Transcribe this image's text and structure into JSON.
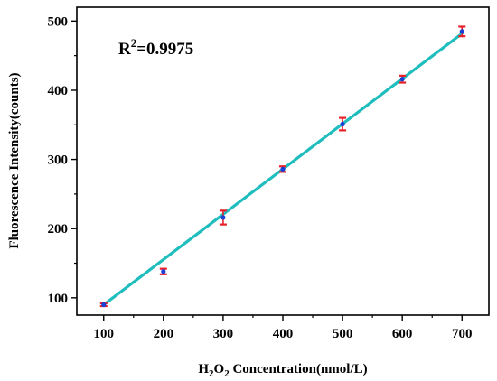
{
  "chart_data": {
    "type": "scatter",
    "x": [
      100,
      200,
      300,
      400,
      500,
      600,
      700
    ],
    "y": [
      90,
      138,
      216,
      286,
      351,
      416,
      485
    ],
    "error": [
      2,
      4,
      10,
      4,
      9,
      5,
      7
    ],
    "fit_line": {
      "x": [
        100,
        700
      ],
      "y": [
        90,
        482
      ]
    },
    "xlim": [
      55,
      745
    ],
    "ylim": [
      75,
      520
    ],
    "xticks": [
      100,
      200,
      300,
      400,
      500,
      600,
      700
    ],
    "yticks": [
      100,
      200,
      300,
      400,
      500
    ],
    "xlabel": {
      "prefix": "H",
      "sub1": "2",
      "mid": "O",
      "sub2": "2",
      "rest": " Concentration(nmol/L)"
    },
    "ylabel": "Fluorescence Intensity(counts)",
    "annotation": {
      "base": "R",
      "sup": "2",
      "rest": "=0.9975"
    },
    "colors": {
      "fit_line": "#1fbdbd",
      "error_bar": "#e8202a",
      "point": "#1a3fd6",
      "axis": "#000000"
    },
    "grid": false
  }
}
